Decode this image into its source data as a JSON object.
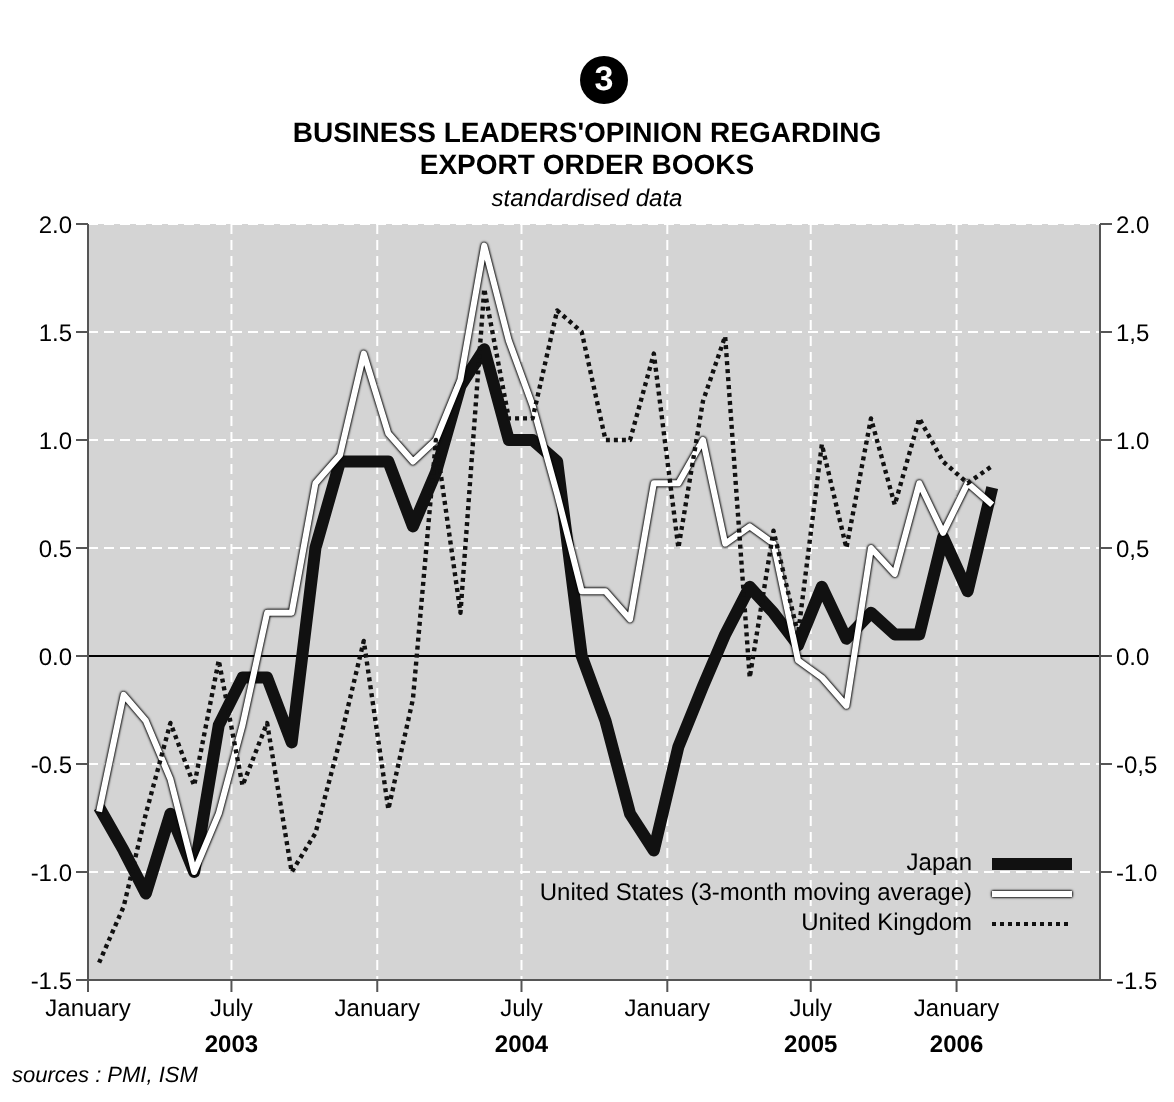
{
  "chart_data": {
    "type": "line",
    "title": "BUSINESS LEADERS'OPINION REGARDING\nEXPORT ORDER BOOKS",
    "subtitle": "standardised data",
    "annotations": [
      "3",
      "sources : PMI, ISM"
    ],
    "x": [
      "2003-01-15",
      "2003-02-15",
      "2003-03-15",
      "2003-04-15",
      "2003-05-15",
      "2003-06-15",
      "2003-07-15",
      "2003-08-15",
      "2003-09-15",
      "2003-10-15",
      "2003-11-15",
      "2003-12-15",
      "2004-01-15",
      "2004-02-15",
      "2004-03-15",
      "2004-04-15",
      "2004-05-15",
      "2004-06-15",
      "2004-07-15",
      "2004-08-15",
      "2004-09-15",
      "2004-10-15",
      "2004-11-15",
      "2004-12-15",
      "2005-01-15",
      "2005-02-15",
      "2005-03-15",
      "2005-04-15",
      "2005-05-15",
      "2005-06-15",
      "2005-07-15",
      "2005-08-15",
      "2005-09-15",
      "2005-10-15",
      "2005-11-15",
      "2005-12-15",
      "2006-01-15",
      "2006-02-15"
    ],
    "series": [
      {
        "name": "Japan",
        "color": "#111111",
        "line_style": "solid",
        "values": [
          -0.7,
          -0.9,
          -1.1,
          -0.73,
          -1.0,
          -0.32,
          -0.1,
          -0.1,
          -0.4,
          0.5,
          0.9,
          0.9,
          0.9,
          0.6,
          0.85,
          1.25,
          1.42,
          1.0,
          1.0,
          0.9,
          0.0,
          -0.3,
          -0.73,
          -0.9,
          -0.42,
          -0.14,
          0.1,
          0.32,
          0.2,
          0.05,
          0.32,
          0.08,
          0.2,
          0.1,
          0.1,
          0.55,
          0.3,
          0.78
        ]
      },
      {
        "name": "United States (3-month moving average)",
        "color": "#ffffff",
        "line_style": "solid",
        "values": [
          -0.72,
          -0.18,
          -0.3,
          -0.57,
          -1.0,
          -0.73,
          -0.32,
          0.2,
          0.2,
          0.8,
          0.93,
          1.4,
          1.03,
          0.9,
          1.0,
          1.28,
          1.9,
          1.46,
          1.16,
          0.75,
          0.3,
          0.3,
          0.17,
          0.8,
          0.8,
          1.0,
          0.52,
          0.6,
          0.52,
          -0.02,
          -0.1,
          -0.23,
          0.5,
          0.38,
          0.8,
          0.57,
          0.8,
          0.7
        ]
      },
      {
        "name": "United Kingdom",
        "color": "#111111",
        "line_style": "dotted",
        "values": [
          -1.42,
          -1.16,
          -0.73,
          -0.31,
          -0.6,
          -0.02,
          -0.6,
          -0.31,
          -1.0,
          -0.82,
          -0.39,
          0.07,
          -0.71,
          -0.2,
          1.0,
          0.2,
          1.7,
          1.1,
          1.1,
          1.6,
          1.5,
          1.0,
          1.0,
          1.4,
          0.5,
          1.18,
          1.48,
          -0.1,
          0.58,
          0.1,
          0.98,
          0.5,
          1.1,
          0.7,
          1.1,
          0.9,
          0.8,
          0.88
        ]
      }
    ],
    "xlim": [
      "2003-01-01",
      "2006-07-01"
    ],
    "xticks": [
      {
        "value": "2003-01-01",
        "label": "January"
      },
      {
        "value": "2003-07-01",
        "label": "July\n2003"
      },
      {
        "value": "2004-01-01",
        "label": "January"
      },
      {
        "value": "2004-07-01",
        "label": "July\n2004"
      },
      {
        "value": "2005-01-01",
        "label": "January"
      },
      {
        "value": "2005-07-01",
        "label": "July\n2005"
      },
      {
        "value": "2006-01-01",
        "label": "January\n2006"
      }
    ],
    "ylim": [
      -1.5,
      2.0
    ],
    "yticks": [
      {
        "value": -1.5,
        "label": "-1.5"
      },
      {
        "value": -1.0,
        "label": "-1.0"
      },
      {
        "value": -0.5,
        "label": "-0.5"
      },
      {
        "value": 0,
        "label": "0.0"
      },
      {
        "value": 0.5,
        "label": "0.5"
      },
      {
        "value": 1.0,
        "label": "1.0"
      },
      {
        "value": 1.5,
        "label": "1.5"
      },
      {
        "value": 2.0,
        "label": "2.0"
      }
    ],
    "y2lim": [
      -1.5,
      2.0
    ],
    "y2ticks": [
      {
        "value": -1.5,
        "label": "-1.5"
      },
      {
        "value": -1.0,
        "label": "-1.0"
      },
      {
        "value": -0.5,
        "label": "-0,5"
      },
      {
        "value": 0,
        "label": "0.0"
      },
      {
        "value": 0.5,
        "label": "0,5"
      },
      {
        "value": 1.0,
        "label": "1.0"
      },
      {
        "value": 1.5,
        "label": "1,5"
      },
      {
        "value": 2.0,
        "label": "2.0"
      }
    ],
    "ref_lines": [
      {
        "axis": "y",
        "value": 0,
        "color": "#000000"
      }
    ],
    "grid": true,
    "legend": "bottom right",
    "marker": "none"
  }
}
